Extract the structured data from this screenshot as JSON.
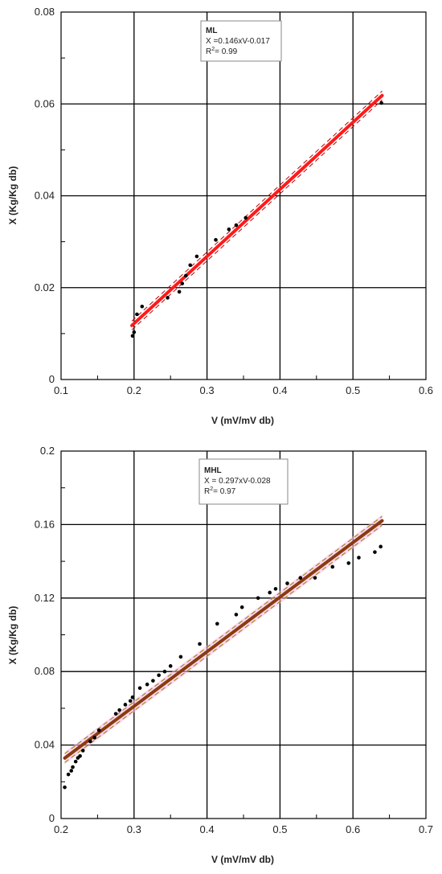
{
  "chart_data": [
    {
      "type": "scatter",
      "title": "",
      "xlabel": "V (mV/mV db)",
      "ylabel": "X (Kg/Kg db)",
      "xlim": [
        0.1,
        0.6
      ],
      "ylim": [
        0,
        0.08
      ],
      "xticks": [
        "0.1",
        "0.2",
        "0.3",
        "0.4",
        "0.5",
        "0.6"
      ],
      "yticks": [
        "0",
        "0.02",
        "0.04",
        "0.06",
        "0.08"
      ],
      "grid": true,
      "legend": {
        "position": "top-center",
        "title": "ML",
        "equation": "X =0.146xV-0.017",
        "r2_prefix": "R",
        "r2_sup": "2",
        "r2_value": "= 0.99"
      },
      "fit": {
        "slope": 0.146,
        "intercept": -0.017,
        "x_range": [
          0.197,
          0.54
        ],
        "color": "#ff1a1a",
        "band_color": "#b80000"
      },
      "points": [
        [
          0.198,
          0.0095
        ],
        [
          0.2,
          0.0103
        ],
        [
          0.204,
          0.0142
        ],
        [
          0.211,
          0.0159
        ],
        [
          0.246,
          0.0178
        ],
        [
          0.262,
          0.0191
        ],
        [
          0.266,
          0.0209
        ],
        [
          0.271,
          0.0226
        ],
        [
          0.277,
          0.0249
        ],
        [
          0.286,
          0.0268
        ],
        [
          0.312,
          0.0304
        ],
        [
          0.33,
          0.0327
        ],
        [
          0.34,
          0.0336
        ],
        [
          0.353,
          0.0352
        ],
        [
          0.539,
          0.0602
        ]
      ]
    },
    {
      "type": "scatter",
      "title": "",
      "xlabel": "V (mV/mV db)",
      "ylabel": "X (Kg/Kg db)",
      "xlim": [
        0.2,
        0.7
      ],
      "ylim": [
        0,
        0.2
      ],
      "xticks": [
        "0.2",
        "0.3",
        "0.4",
        "0.5",
        "0.6",
        "0.7"
      ],
      "yticks": [
        "0",
        "0.04",
        "0.08",
        "0.12",
        "0.16",
        "0.2"
      ],
      "grid": true,
      "legend": {
        "position": "top-center",
        "title": "MHL",
        "equation": "X = 0.297xV-0.028",
        "r2_prefix": "R",
        "r2_sup": "2",
        "r2_value": "= 0.97"
      },
      "fit": {
        "slope": 0.297,
        "intercept": -0.028,
        "x_range": [
          0.205,
          0.64
        ],
        "color": "#8b3a10",
        "band_color": "#9a7a00"
      },
      "points": [
        [
          0.205,
          0.017
        ],
        [
          0.21,
          0.024
        ],
        [
          0.214,
          0.026
        ],
        [
          0.216,
          0.028
        ],
        [
          0.22,
          0.031
        ],
        [
          0.223,
          0.033
        ],
        [
          0.226,
          0.034
        ],
        [
          0.23,
          0.037
        ],
        [
          0.24,
          0.042
        ],
        [
          0.246,
          0.044
        ],
        [
          0.252,
          0.048
        ],
        [
          0.275,
          0.057
        ],
        [
          0.28,
          0.059
        ],
        [
          0.288,
          0.062
        ],
        [
          0.295,
          0.064
        ],
        [
          0.298,
          0.066
        ],
        [
          0.308,
          0.071
        ],
        [
          0.318,
          0.073
        ],
        [
          0.326,
          0.075
        ],
        [
          0.334,
          0.078
        ],
        [
          0.342,
          0.08
        ],
        [
          0.35,
          0.083
        ],
        [
          0.364,
          0.088
        ],
        [
          0.39,
          0.095
        ],
        [
          0.414,
          0.106
        ],
        [
          0.44,
          0.111
        ],
        [
          0.448,
          0.115
        ],
        [
          0.47,
          0.12
        ],
        [
          0.486,
          0.123
        ],
        [
          0.494,
          0.125
        ],
        [
          0.51,
          0.128
        ],
        [
          0.528,
          0.131
        ],
        [
          0.548,
          0.131
        ],
        [
          0.572,
          0.137
        ],
        [
          0.594,
          0.139
        ],
        [
          0.608,
          0.142
        ],
        [
          0.63,
          0.145
        ],
        [
          0.638,
          0.148
        ]
      ]
    }
  ]
}
